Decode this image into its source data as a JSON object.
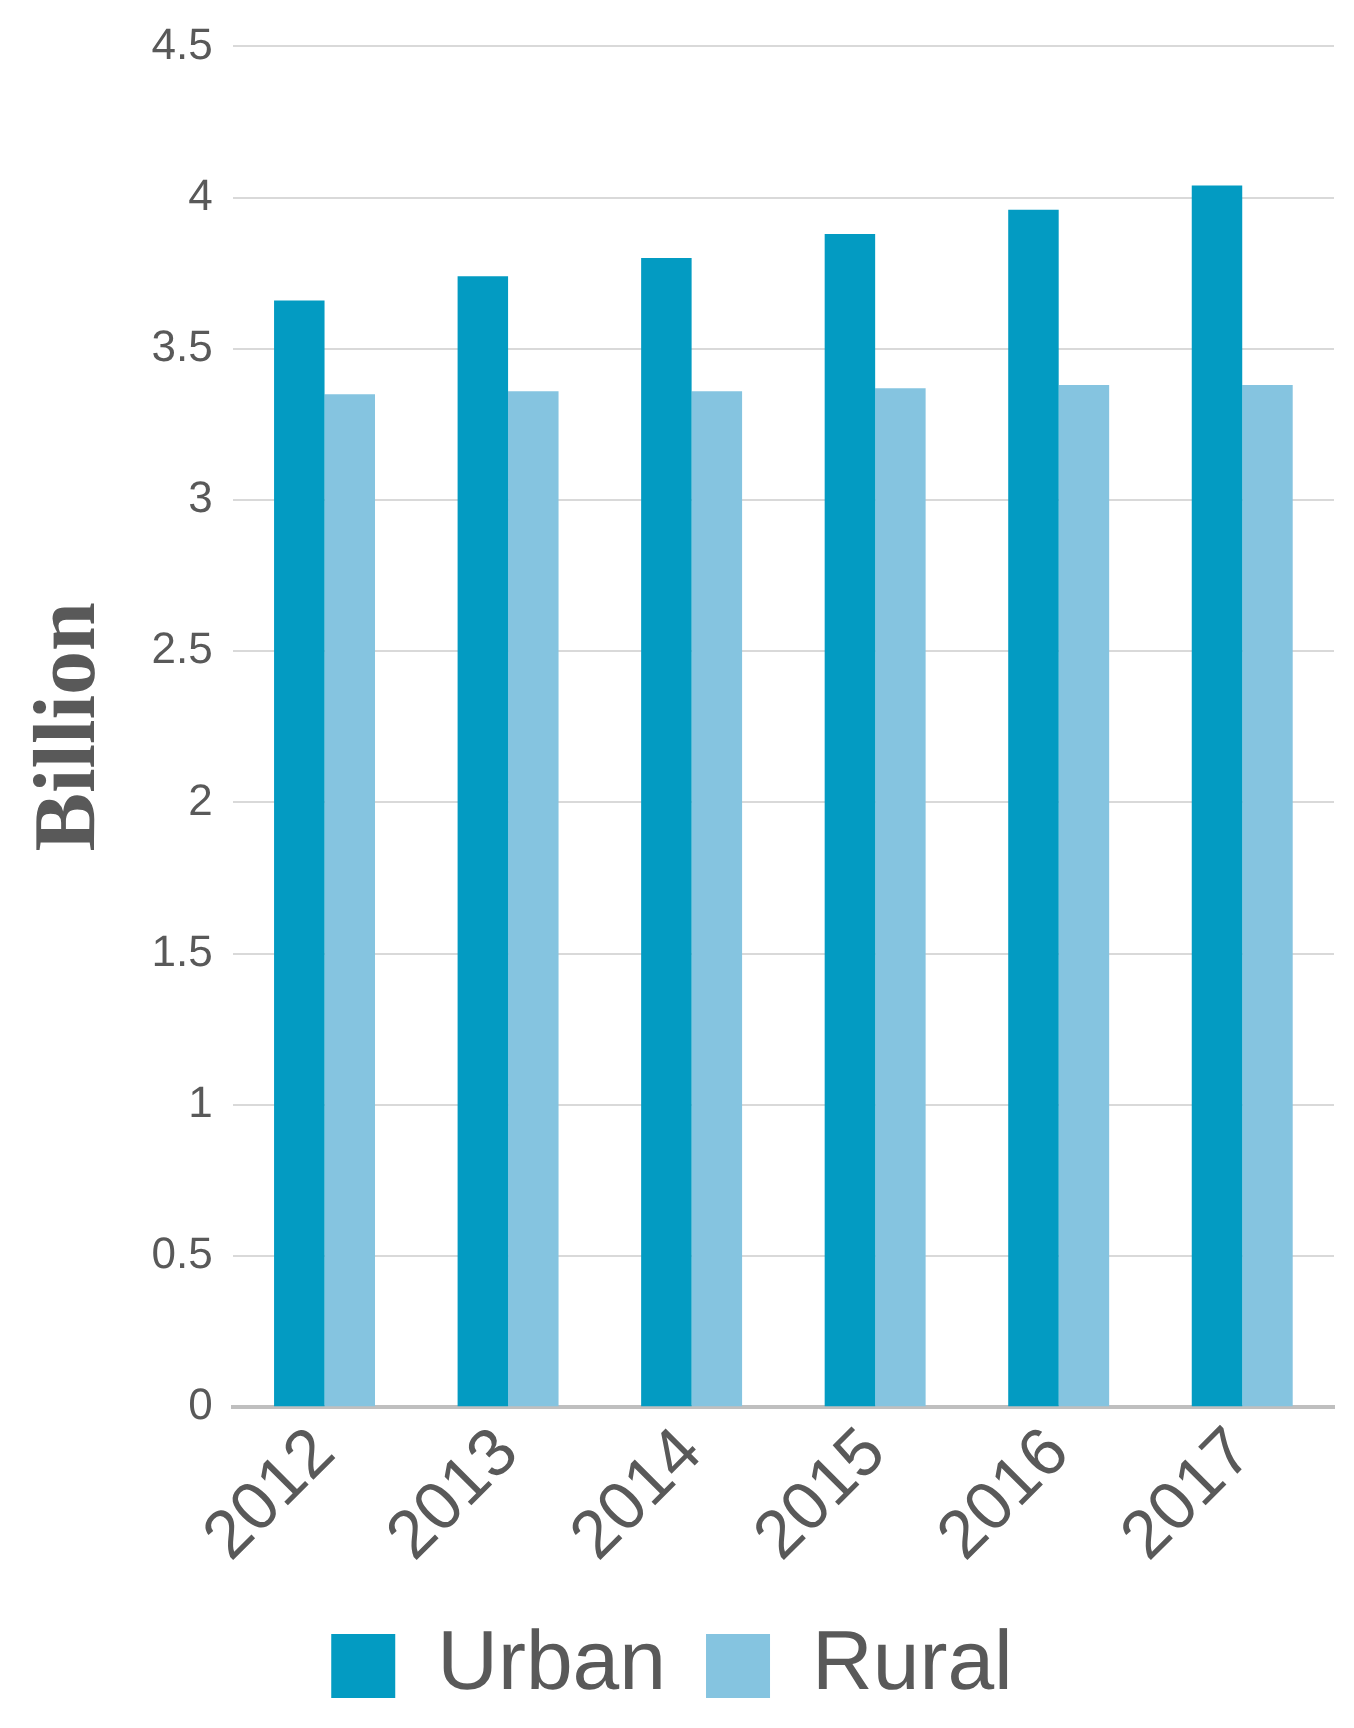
{
  "chart_data": {
    "type": "bar",
    "ylabel": "Billion",
    "categories": [
      "2012",
      "2013",
      "2014",
      "2015",
      "2016",
      "2017"
    ],
    "series": [
      {
        "name": "Urban",
        "color": "#039bc2",
        "values": [
          3.66,
          3.74,
          3.8,
          3.88,
          3.96,
          4.04
        ]
      },
      {
        "name": "Rural",
        "color": "#85c4e0",
        "values": [
          3.35,
          3.36,
          3.36,
          3.37,
          3.38,
          3.38
        ]
      }
    ],
    "ylim": [
      0,
      4.5
    ],
    "yticks": [
      0,
      0.5,
      1,
      1.5,
      2,
      2.5,
      3,
      3.5,
      4,
      4.5
    ],
    "grid": "y",
    "legend": "bottom"
  }
}
